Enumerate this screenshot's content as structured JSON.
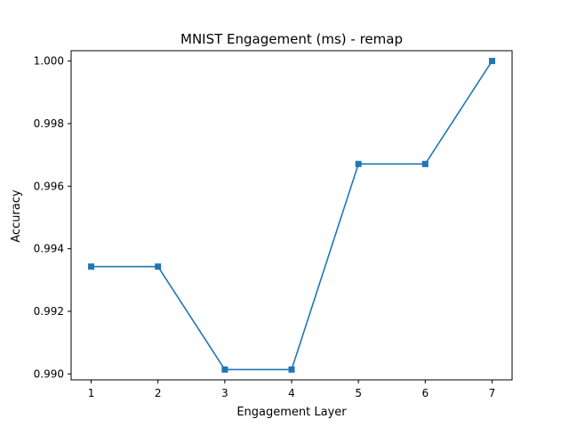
{
  "chart_data": {
    "type": "line",
    "title": "MNIST Engagement (ms) - remap",
    "xlabel": "Engagement Layer",
    "ylabel": "Accuracy",
    "x": [
      1,
      2,
      3,
      4,
      5,
      6,
      7
    ],
    "series": [
      {
        "values": [
          0.99343,
          0.99343,
          0.99014,
          0.99014,
          0.99671,
          0.99671,
          1.0
        ],
        "color": "#1f77b4",
        "marker": "square"
      }
    ],
    "xticks": [
      "1",
      "2",
      "3",
      "4",
      "5",
      "6",
      "7"
    ],
    "yticks": [
      "0.990",
      "0.992",
      "0.994",
      "0.996",
      "0.998",
      "1.000"
    ],
    "xlim": [
      0.7,
      7.3
    ],
    "ylim": [
      0.98981,
      1.00033
    ],
    "grid": false,
    "legend": "none"
  }
}
